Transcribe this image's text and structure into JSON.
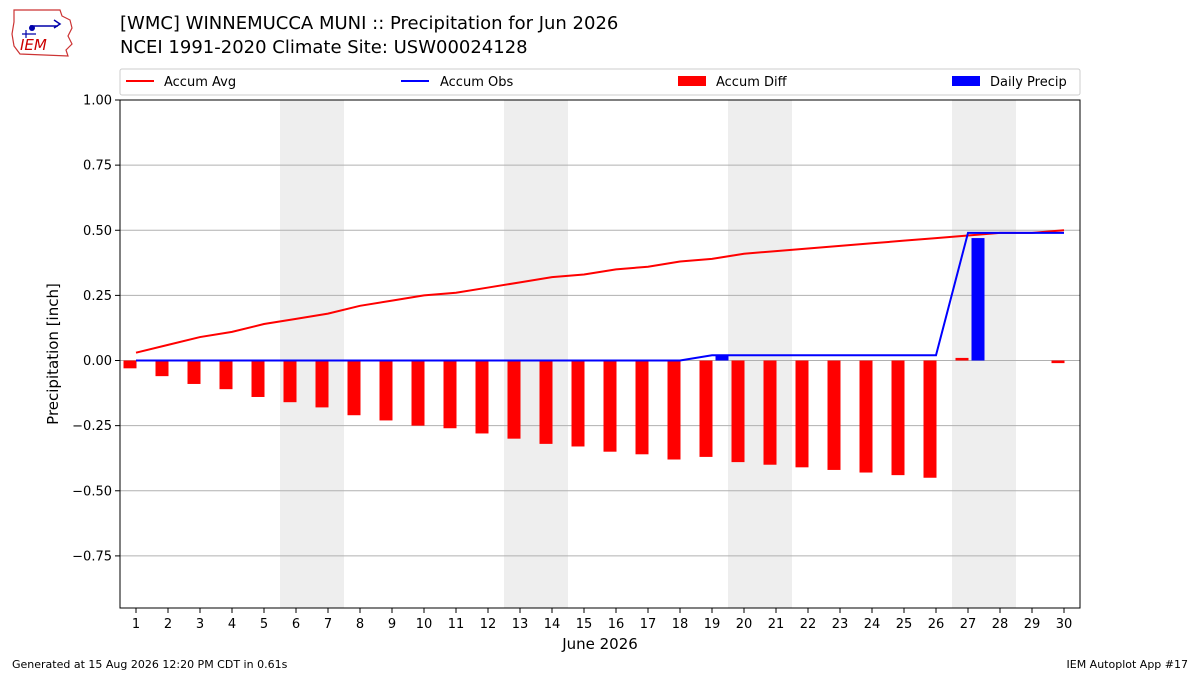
{
  "header": {
    "title_line1": "[WMC] WINNEMUCCA MUNI :: Precipitation for Jun 2026",
    "title_line2": "NCEI 1991-2020 Climate Site: USW00024128",
    "logo_text": "IEM"
  },
  "footer": {
    "left": "Generated at 15 Aug 2026 12:20 PM CDT in 0.61s",
    "right": "IEM Autoplot App #17"
  },
  "colors": {
    "accum_avg": "#ff0000",
    "accum_obs": "#0000ff",
    "accum_diff": "#ff0000",
    "daily_precip": "#0000ff",
    "weekend_shade": "#eeeeee",
    "grid": "#b0b0b0"
  },
  "chart_data": {
    "type": "bar",
    "xlabel": "June 2026",
    "ylabel": "Precipitation [inch]",
    "xlim": [
      1,
      30
    ],
    "ylim": [
      -0.95,
      1.0
    ],
    "y_ticks": [
      -0.75,
      -0.5,
      -0.25,
      0.0,
      0.25,
      0.5,
      0.75,
      1.0
    ],
    "y_tick_labels": [
      "−0.75",
      "−0.50",
      "−0.25",
      "0.00",
      "0.25",
      "0.50",
      "0.75",
      "1.00"
    ],
    "grid": "horizontal",
    "legend_position": "top",
    "weekend_shading": [
      [
        6,
        7
      ],
      [
        13,
        14
      ],
      [
        20,
        21
      ],
      [
        27,
        28
      ]
    ],
    "x": [
      1,
      2,
      3,
      4,
      5,
      6,
      7,
      8,
      9,
      10,
      11,
      12,
      13,
      14,
      15,
      16,
      17,
      18,
      19,
      20,
      21,
      22,
      23,
      24,
      25,
      26,
      27,
      28,
      29,
      30
    ],
    "x_tick_labels": [
      "1",
      "2",
      "3",
      "4",
      "5",
      "6",
      "7",
      "8",
      "9",
      "10",
      "11",
      "12",
      "13",
      "14",
      "15",
      "16",
      "17",
      "18",
      "19",
      "20",
      "21",
      "22",
      "23",
      "24",
      "25",
      "26",
      "27",
      "28",
      "29",
      "30"
    ],
    "series": [
      {
        "name": "Accum Avg",
        "type": "line",
        "values": [
          0.03,
          0.06,
          0.09,
          0.11,
          0.14,
          0.16,
          0.18,
          0.21,
          0.23,
          0.25,
          0.26,
          0.28,
          0.3,
          0.32,
          0.33,
          0.35,
          0.36,
          0.38,
          0.39,
          0.41,
          0.42,
          0.43,
          0.44,
          0.45,
          0.46,
          0.47,
          0.48,
          0.49,
          0.49,
          0.5
        ]
      },
      {
        "name": "Accum Obs",
        "type": "line",
        "values": [
          0,
          0,
          0,
          0,
          0,
          0,
          0,
          0,
          0,
          0,
          0,
          0,
          0,
          0,
          0,
          0,
          0,
          0,
          0.02,
          0.02,
          0.02,
          0.02,
          0.02,
          0.02,
          0.02,
          0.02,
          0.49,
          0.49,
          0.49,
          0.49
        ]
      },
      {
        "name": "Accum Diff",
        "type": "bar",
        "values": [
          -0.03,
          -0.06,
          -0.09,
          -0.11,
          -0.14,
          -0.16,
          -0.18,
          -0.21,
          -0.23,
          -0.25,
          -0.26,
          -0.28,
          -0.3,
          -0.32,
          -0.33,
          -0.35,
          -0.36,
          -0.38,
          -0.37,
          -0.39,
          -0.4,
          -0.41,
          -0.42,
          -0.43,
          -0.44,
          -0.45,
          0.01,
          0.0,
          0.0,
          -0.01
        ]
      },
      {
        "name": "Daily Precip",
        "type": "bar",
        "values": [
          0,
          0,
          0,
          0,
          0,
          0,
          0,
          0,
          0,
          0,
          0,
          0,
          0,
          0,
          0,
          0,
          0,
          0,
          0.02,
          0,
          0,
          0,
          0,
          0,
          0,
          0,
          0.47,
          0,
          0,
          0
        ]
      }
    ]
  }
}
